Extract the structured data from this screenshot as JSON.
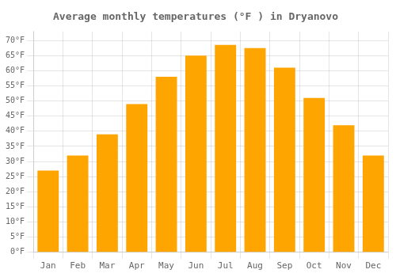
{
  "chart_data": {
    "type": "bar",
    "title": "Average monthly temperatures (°F ) in Dryanovo",
    "categories": [
      "Jan",
      "Feb",
      "Mar",
      "Apr",
      "May",
      "Jun",
      "Jul",
      "Aug",
      "Sep",
      "Oct",
      "Nov",
      "Dec"
    ],
    "values": [
      27,
      32,
      39,
      49,
      58,
      65,
      68.5,
      67.5,
      61,
      51,
      42,
      32
    ],
    "color": "#FFA500",
    "ylim": [
      0,
      73
    ],
    "yticks": [
      {
        "value": 0,
        "label": "0°F"
      },
      {
        "value": 5,
        "label": "5°F"
      },
      {
        "value": 10,
        "label": "10°F"
      },
      {
        "value": 15,
        "label": "15°F"
      },
      {
        "value": 20,
        "label": "20°F"
      },
      {
        "value": 25,
        "label": "25°F"
      },
      {
        "value": 30,
        "label": "30°F"
      },
      {
        "value": 35,
        "label": "35°F"
      },
      {
        "value": 40,
        "label": "40°F"
      },
      {
        "value": 45,
        "label": "45°F"
      },
      {
        "value": 50,
        "label": "50°F"
      },
      {
        "value": 55,
        "label": "55°F"
      },
      {
        "value": 60,
        "label": "60°F"
      },
      {
        "value": 65,
        "label": "65°F"
      },
      {
        "value": 70,
        "label": "70°F"
      }
    ],
    "grid": true
  }
}
